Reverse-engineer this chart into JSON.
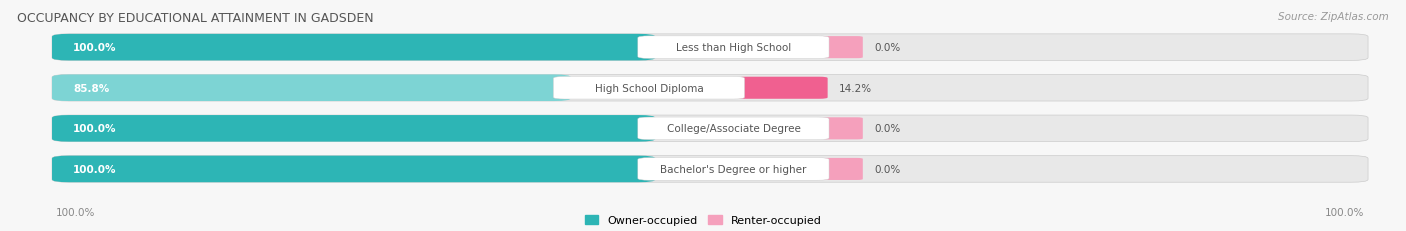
{
  "title": "OCCUPANCY BY EDUCATIONAL ATTAINMENT IN GADSDEN",
  "source": "Source: ZipAtlas.com",
  "categories": [
    "Less than High School",
    "High School Diploma",
    "College/Associate Degree",
    "Bachelor's Degree or higher"
  ],
  "owner_values": [
    100.0,
    85.8,
    100.0,
    100.0
  ],
  "renter_values": [
    0.0,
    14.2,
    0.0,
    0.0
  ],
  "owner_color_full": "#2db5b5",
  "owner_color_partial": "#7dd4d4",
  "renter_color_full": "#f06090",
  "renter_color_light": "#f5a0bc",
  "bar_bg_color": "#e0e0e0",
  "row_bg_color": "#f0f0f0",
  "background_color": "#f7f7f7",
  "title_fontsize": 9,
  "label_fontsize": 7.5,
  "tick_fontsize": 7.5,
  "legend_fontsize": 8,
  "source_fontsize": 7.5,
  "cat_label_fontsize": 7.5
}
